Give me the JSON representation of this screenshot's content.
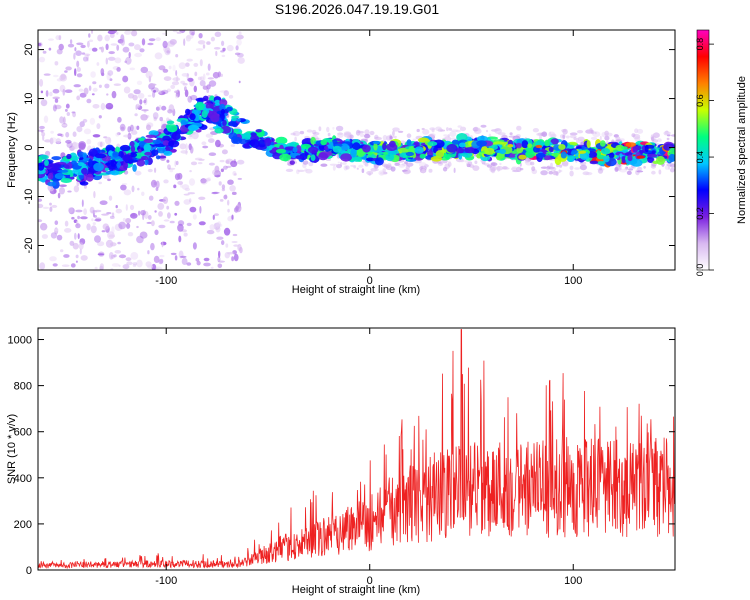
{
  "title": "S196.2026.047.19.19.G01",
  "chart_data": [
    {
      "type": "heatmap",
      "name": "spectrogram",
      "xlabel": "Height of straight line (km)",
      "ylabel": "Frequency (Hz)",
      "xlim": [
        -163,
        150
      ],
      "ylim": [
        -25,
        24
      ],
      "xticks": [
        -100,
        0,
        100
      ],
      "xtick_labels": [
        "-100",
        "0",
        "100"
      ],
      "yticks": [
        -20,
        -10,
        0,
        10,
        20
      ],
      "ytick_labels": [
        "-20",
        "-10",
        "0",
        "10",
        "20"
      ],
      "ridge": {
        "x": [
          -160,
          -140,
          -120,
          -100,
          -90,
          -80,
          -70,
          -60,
          -40,
          -20,
          0,
          50,
          100,
          150
        ],
        "frequency": [
          -5,
          -4,
          -2,
          1,
          5,
          8,
          6,
          2,
          -1,
          0,
          -1,
          0,
          -1,
          -1
        ]
      },
      "colorbar": {
        "label": "Normalized spectral amplitude",
        "range": [
          0.0,
          0.85
        ],
        "ticks": [
          0.0,
          0.2,
          0.4,
          0.6,
          0.8
        ],
        "tick_labels": [
          "0.0",
          "0.2",
          "0.4",
          "0.6",
          "0.8"
        ],
        "colormap": [
          "#ffffff",
          "#d8b8f0",
          "#7a1fe0",
          "#0000ff",
          "#00c8ff",
          "#00ff80",
          "#c8ff00",
          "#ff8000",
          "#ff0000",
          "#ff00c0"
        ]
      }
    },
    {
      "type": "line",
      "name": "snr",
      "xlabel": "Height of straight line (km)",
      "ylabel": "SNR (10 * v/v)",
      "xlim": [
        -163,
        150
      ],
      "ylim": [
        0,
        1050
      ],
      "xticks": [
        -100,
        0,
        100
      ],
      "xtick_labels": [
        "-100",
        "0",
        "100"
      ],
      "yticks": [
        0,
        200,
        400,
        600,
        800,
        1000
      ],
      "ytick_labels": [
        "0",
        "200",
        "400",
        "600",
        "800",
        "1000"
      ],
      "color": "#ee2222",
      "envelope": {
        "x": [
          -163,
          -140,
          -100,
          -80,
          -65,
          -55,
          -45,
          -30,
          -15,
          0,
          10,
          20,
          30,
          45,
          60,
          80,
          100,
          120,
          150
        ],
        "mean": [
          20,
          25,
          30,
          30,
          25,
          60,
          100,
          130,
          190,
          230,
          280,
          320,
          350,
          380,
          400,
          390,
          400,
          390,
          400
        ],
        "peak": [
          45,
          55,
          75,
          70,
          60,
          150,
          250,
          330,
          430,
          500,
          620,
          700,
          790,
          1045,
          900,
          850,
          880,
          760,
          720
        ]
      }
    }
  ]
}
